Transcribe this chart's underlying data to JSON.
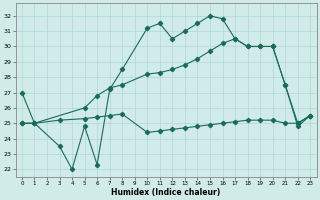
{
  "line1_x": [
    0,
    1,
    3,
    4,
    5,
    6,
    7,
    8,
    10,
    11,
    12,
    13,
    14,
    15,
    16,
    17,
    18,
    19,
    20,
    21,
    22,
    23
  ],
  "line1_y": [
    27.0,
    25.0,
    23.5,
    22.0,
    24.8,
    22.3,
    27.2,
    28.5,
    31.2,
    31.5,
    30.5,
    31.0,
    31.5,
    32.0,
    31.8,
    30.5,
    30.0,
    30.0,
    30.0,
    27.5,
    24.8,
    25.5
  ],
  "line2_x": [
    0,
    1,
    5,
    6,
    7,
    8,
    10,
    11,
    12,
    13,
    14,
    15,
    16,
    17,
    18,
    19,
    20,
    21,
    22,
    23
  ],
  "line2_y": [
    25.0,
    25.0,
    26.0,
    26.8,
    27.3,
    27.5,
    28.2,
    28.3,
    28.5,
    28.8,
    29.2,
    29.7,
    30.2,
    30.5,
    30.0,
    30.0,
    30.0,
    27.5,
    25.0,
    25.5
  ],
  "line3_x": [
    0,
    1,
    3,
    5,
    6,
    7,
    8,
    10,
    11,
    12,
    13,
    14,
    15,
    16,
    17,
    18,
    19,
    20,
    21,
    22,
    23
  ],
  "line3_y": [
    25.0,
    25.0,
    25.2,
    25.3,
    25.4,
    25.5,
    25.6,
    24.4,
    24.5,
    24.6,
    24.7,
    24.8,
    24.9,
    25.0,
    25.1,
    25.2,
    25.2,
    25.2,
    25.0,
    25.0,
    25.5
  ],
  "color": "#1a6b5a",
  "bg_color": "#d0ebe8",
  "grid_color": "#b0d8d4",
  "xlabel": "Humidex (Indice chaleur)",
  "xlim": [
    -0.5,
    23.5
  ],
  "ylim": [
    21.5,
    32.8
  ],
  "yticks": [
    22,
    23,
    24,
    25,
    26,
    27,
    28,
    29,
    30,
    31,
    32
  ],
  "xticks": [
    0,
    1,
    2,
    3,
    4,
    5,
    6,
    7,
    8,
    9,
    10,
    11,
    12,
    13,
    14,
    15,
    16,
    17,
    18,
    19,
    20,
    21,
    22,
    23
  ]
}
